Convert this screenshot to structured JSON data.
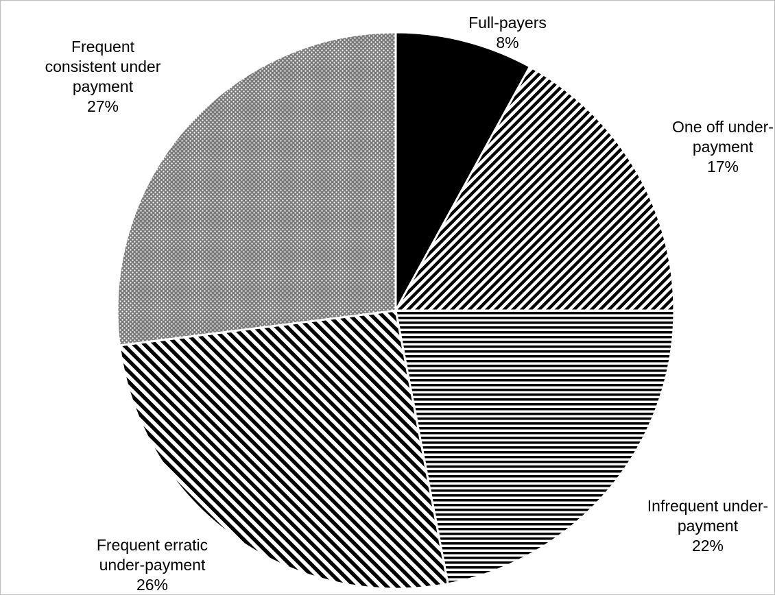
{
  "chart_data": {
    "type": "pie",
    "slices": [
      {
        "label": "Full-payers",
        "value": 8,
        "value_label": "8%",
        "fill": "solid-black"
      },
      {
        "label": "One off under-payment",
        "value": 17,
        "value_label": "17%",
        "fill": "diagonal-up-stripes"
      },
      {
        "label": "Infrequent under-payment",
        "value": 22,
        "value_label": "22%",
        "fill": "horizontal-stripes"
      },
      {
        "label": "Frequent erratic under-payment",
        "value": 26,
        "value_label": "26%",
        "fill": "diagonal-down-stripes"
      },
      {
        "label": "Frequent consistent under payment",
        "value": 27,
        "value_label": "27%",
        "fill": "dotted-grid"
      }
    ],
    "start_angle": "12 o'clock",
    "direction": "clockwise",
    "legend": "none",
    "title": ""
  },
  "labels": [
    {
      "lines": [
        "Full-payers"
      ],
      "pct": "8%"
    },
    {
      "lines": [
        "One off under-",
        "payment"
      ],
      "pct": "17%"
    },
    {
      "lines": [
        "Infrequent under-",
        "payment"
      ],
      "pct": "22%"
    },
    {
      "lines": [
        "Frequent erratic",
        "under-payment"
      ],
      "pct": "26%"
    },
    {
      "lines": [
        "Frequent",
        "consistent under",
        "payment"
      ],
      "pct": "27%"
    }
  ],
  "colors": {
    "ink": "#000000",
    "paper": "#ffffff",
    "dot_bg": "#7a7a7a",
    "frame": "#bfbfbf"
  }
}
